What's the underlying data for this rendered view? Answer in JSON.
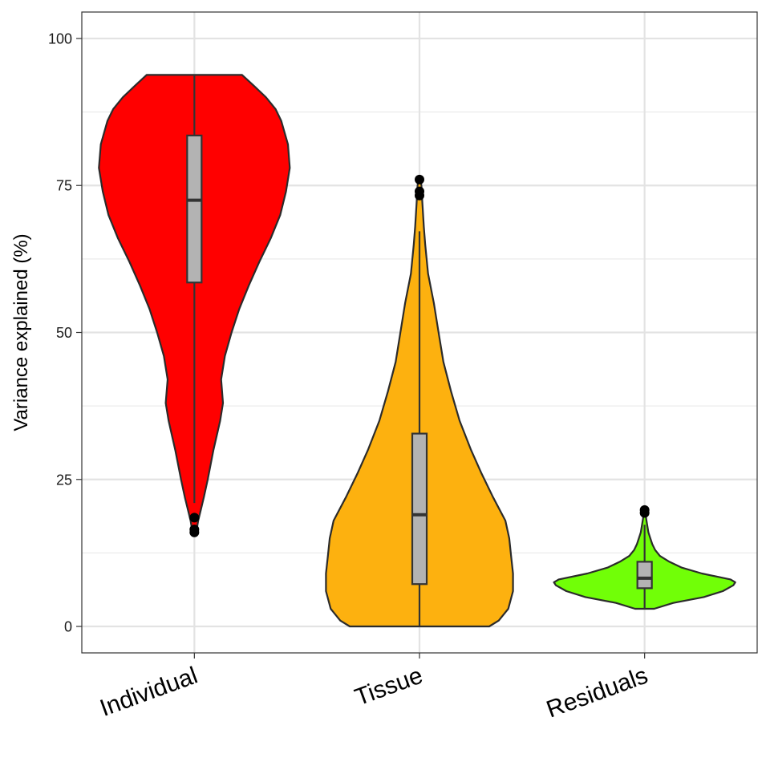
{
  "chart_data": {
    "type": "violin",
    "title": "",
    "xlabel": "",
    "ylabel": "Variance explained (%)",
    "ylim": [
      -4.5,
      104.5
    ],
    "yticks": [
      0,
      25,
      50,
      75,
      100
    ],
    "grid": true,
    "legend": "none",
    "categories": [
      "Individual",
      "Tissue",
      "Residuals"
    ],
    "series": [
      {
        "category": "Individual",
        "color": "#ff0000",
        "range": [
          16,
          93.8
        ],
        "box": {
          "q1": 58.5,
          "median": 72.5,
          "q3": 83.5,
          "whisker_low": 21,
          "whisker_high": 93.8
        },
        "outliers": [
          18.5,
          16.5,
          16
        ],
        "density": [
          [
            16,
            0.02
          ],
          [
            18,
            0.04
          ],
          [
            20,
            0.07
          ],
          [
            22,
            0.1
          ],
          [
            25,
            0.14
          ],
          [
            30,
            0.2
          ],
          [
            35,
            0.27
          ],
          [
            38,
            0.3
          ],
          [
            42,
            0.28
          ],
          [
            46,
            0.32
          ],
          [
            50,
            0.39
          ],
          [
            54,
            0.47
          ],
          [
            58,
            0.57
          ],
          [
            62,
            0.68
          ],
          [
            66,
            0.8
          ],
          [
            70,
            0.9
          ],
          [
            74,
            0.96
          ],
          [
            78,
            1.0
          ],
          [
            82,
            0.98
          ],
          [
            86,
            0.91
          ],
          [
            88,
            0.85
          ],
          [
            90,
            0.75
          ],
          [
            92,
            0.62
          ],
          [
            93.8,
            0.5
          ]
        ]
      },
      {
        "category": "Tissue",
        "color": "#fdb10f",
        "range": [
          0,
          76
        ],
        "box": {
          "q1": 7.2,
          "median": 19,
          "q3": 32.8,
          "whisker_low": 0,
          "whisker_high": 67.2
        },
        "outliers": [
          76,
          74,
          73.3
        ],
        "density": [
          [
            0,
            0.73
          ],
          [
            1,
            0.83
          ],
          [
            3,
            0.93
          ],
          [
            6,
            0.98
          ],
          [
            9,
            0.98
          ],
          [
            12,
            0.96
          ],
          [
            15,
            0.94
          ],
          [
            18,
            0.9
          ],
          [
            22,
            0.77
          ],
          [
            26,
            0.65
          ],
          [
            30,
            0.54
          ],
          [
            35,
            0.42
          ],
          [
            40,
            0.33
          ],
          [
            45,
            0.25
          ],
          [
            50,
            0.2
          ],
          [
            55,
            0.15
          ],
          [
            60,
            0.09
          ],
          [
            65,
            0.06
          ],
          [
            68,
            0.045
          ],
          [
            72,
            0.03
          ],
          [
            75,
            0.02
          ],
          [
            76,
            0.01
          ]
        ]
      },
      {
        "category": "Residuals",
        "color": "#71ff07",
        "range": [
          3,
          19.8
        ],
        "box": {
          "q1": 6.5,
          "median": 8.2,
          "q3": 11,
          "whisker_low": 3,
          "whisker_high": 17.3
        },
        "outliers": [
          19.8,
          19.3
        ],
        "density": [
          [
            3,
            0.1
          ],
          [
            4,
            0.3
          ],
          [
            5,
            0.62
          ],
          [
            6,
            0.82
          ],
          [
            7,
            0.93
          ],
          [
            7.5,
            0.95
          ],
          [
            8,
            0.9
          ],
          [
            9,
            0.6
          ],
          [
            10,
            0.39
          ],
          [
            11,
            0.26
          ],
          [
            12,
            0.16
          ],
          [
            13,
            0.11
          ],
          [
            14,
            0.08
          ],
          [
            15,
            0.06
          ],
          [
            16,
            0.04
          ],
          [
            17,
            0.03
          ],
          [
            18,
            0.02
          ],
          [
            19,
            0.01
          ],
          [
            19.8,
            0.005
          ]
        ]
      }
    ]
  }
}
